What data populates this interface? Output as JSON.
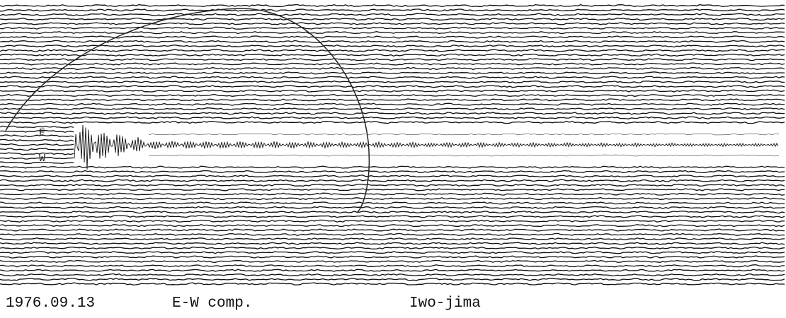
{
  "record": {
    "labels": [
      "E",
      "W"
    ]
  },
  "caption": {
    "date": "1976.09.13",
    "component": "E-W comp.",
    "station": "Iwo-jima"
  }
}
